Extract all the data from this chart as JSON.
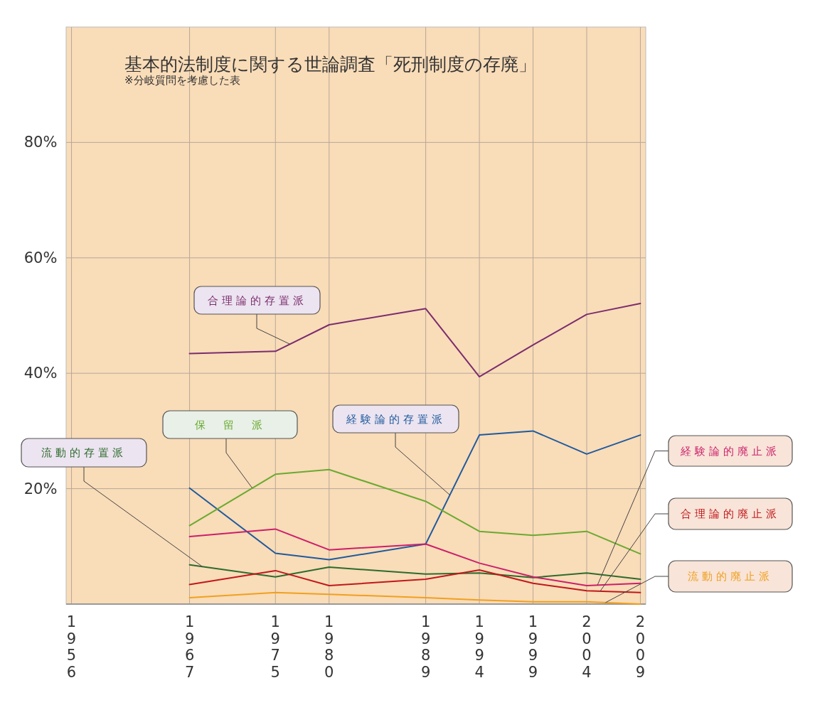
{
  "chart_data": {
    "type": "line",
    "title": "基本的法制度に関する世論調査「死刑制度の存廃」",
    "subtitle": "※分岐質問を考慮した表",
    "x": [
      1967,
      1975,
      1980,
      1989,
      1994,
      1999,
      2004,
      2009
    ],
    "xlim": [
      1955.5,
      2009.5
    ],
    "xticks": [
      1956,
      1967,
      1975,
      1980,
      1989,
      1994,
      1999,
      2004,
      2009
    ],
    "ylim": [
      0,
      100
    ],
    "yticks": [
      {
        "value": 20,
        "label": "20%"
      },
      {
        "value": 40,
        "label": "40%"
      },
      {
        "value": 60,
        "label": "60%"
      },
      {
        "value": 80,
        "label": "80%"
      }
    ],
    "grid": true,
    "legend": false,
    "marker": "none",
    "line_style": "solid",
    "series": [
      {
        "name": "合理論的存置派",
        "color": "#7b2d6e",
        "values": [
          43.4,
          43.8,
          48.4,
          51.2,
          39.4,
          44.9,
          50.2,
          52.1
        ]
      },
      {
        "name": "経験論的存置派",
        "color": "#1f5a9e",
        "values": [
          20.1,
          8.8,
          7.7,
          10.4,
          29.3,
          30.0,
          26.0,
          29.3
        ]
      },
      {
        "name": "保　留　派",
        "color": "#6aaa30",
        "values": [
          13.6,
          22.5,
          23.3,
          17.8,
          12.6,
          11.9,
          12.6,
          8.7
        ]
      },
      {
        "name": "流動的存置派",
        "color": "#2e6b2e",
        "values": [
          6.8,
          4.7,
          6.4,
          5.2,
          5.4,
          4.6,
          5.4,
          4.3
        ]
      },
      {
        "name": "経験論的廃止派",
        "color": "#cc1f6a",
        "values": [
          11.7,
          13.0,
          9.4,
          10.4,
          7.1,
          4.7,
          3.2,
          3.6
        ]
      },
      {
        "name": "合理論的廃止派",
        "color": "#c0181c",
        "values": [
          3.4,
          5.8,
          3.2,
          4.3,
          5.9,
          3.6,
          2.3,
          2.0
        ]
      },
      {
        "name": "流動的廃止派",
        "color": "#f0a020",
        "values": [
          1.1,
          2.0,
          1.7,
          1.1,
          0.7,
          0.4,
          0.4,
          0.0
        ]
      }
    ]
  }
}
